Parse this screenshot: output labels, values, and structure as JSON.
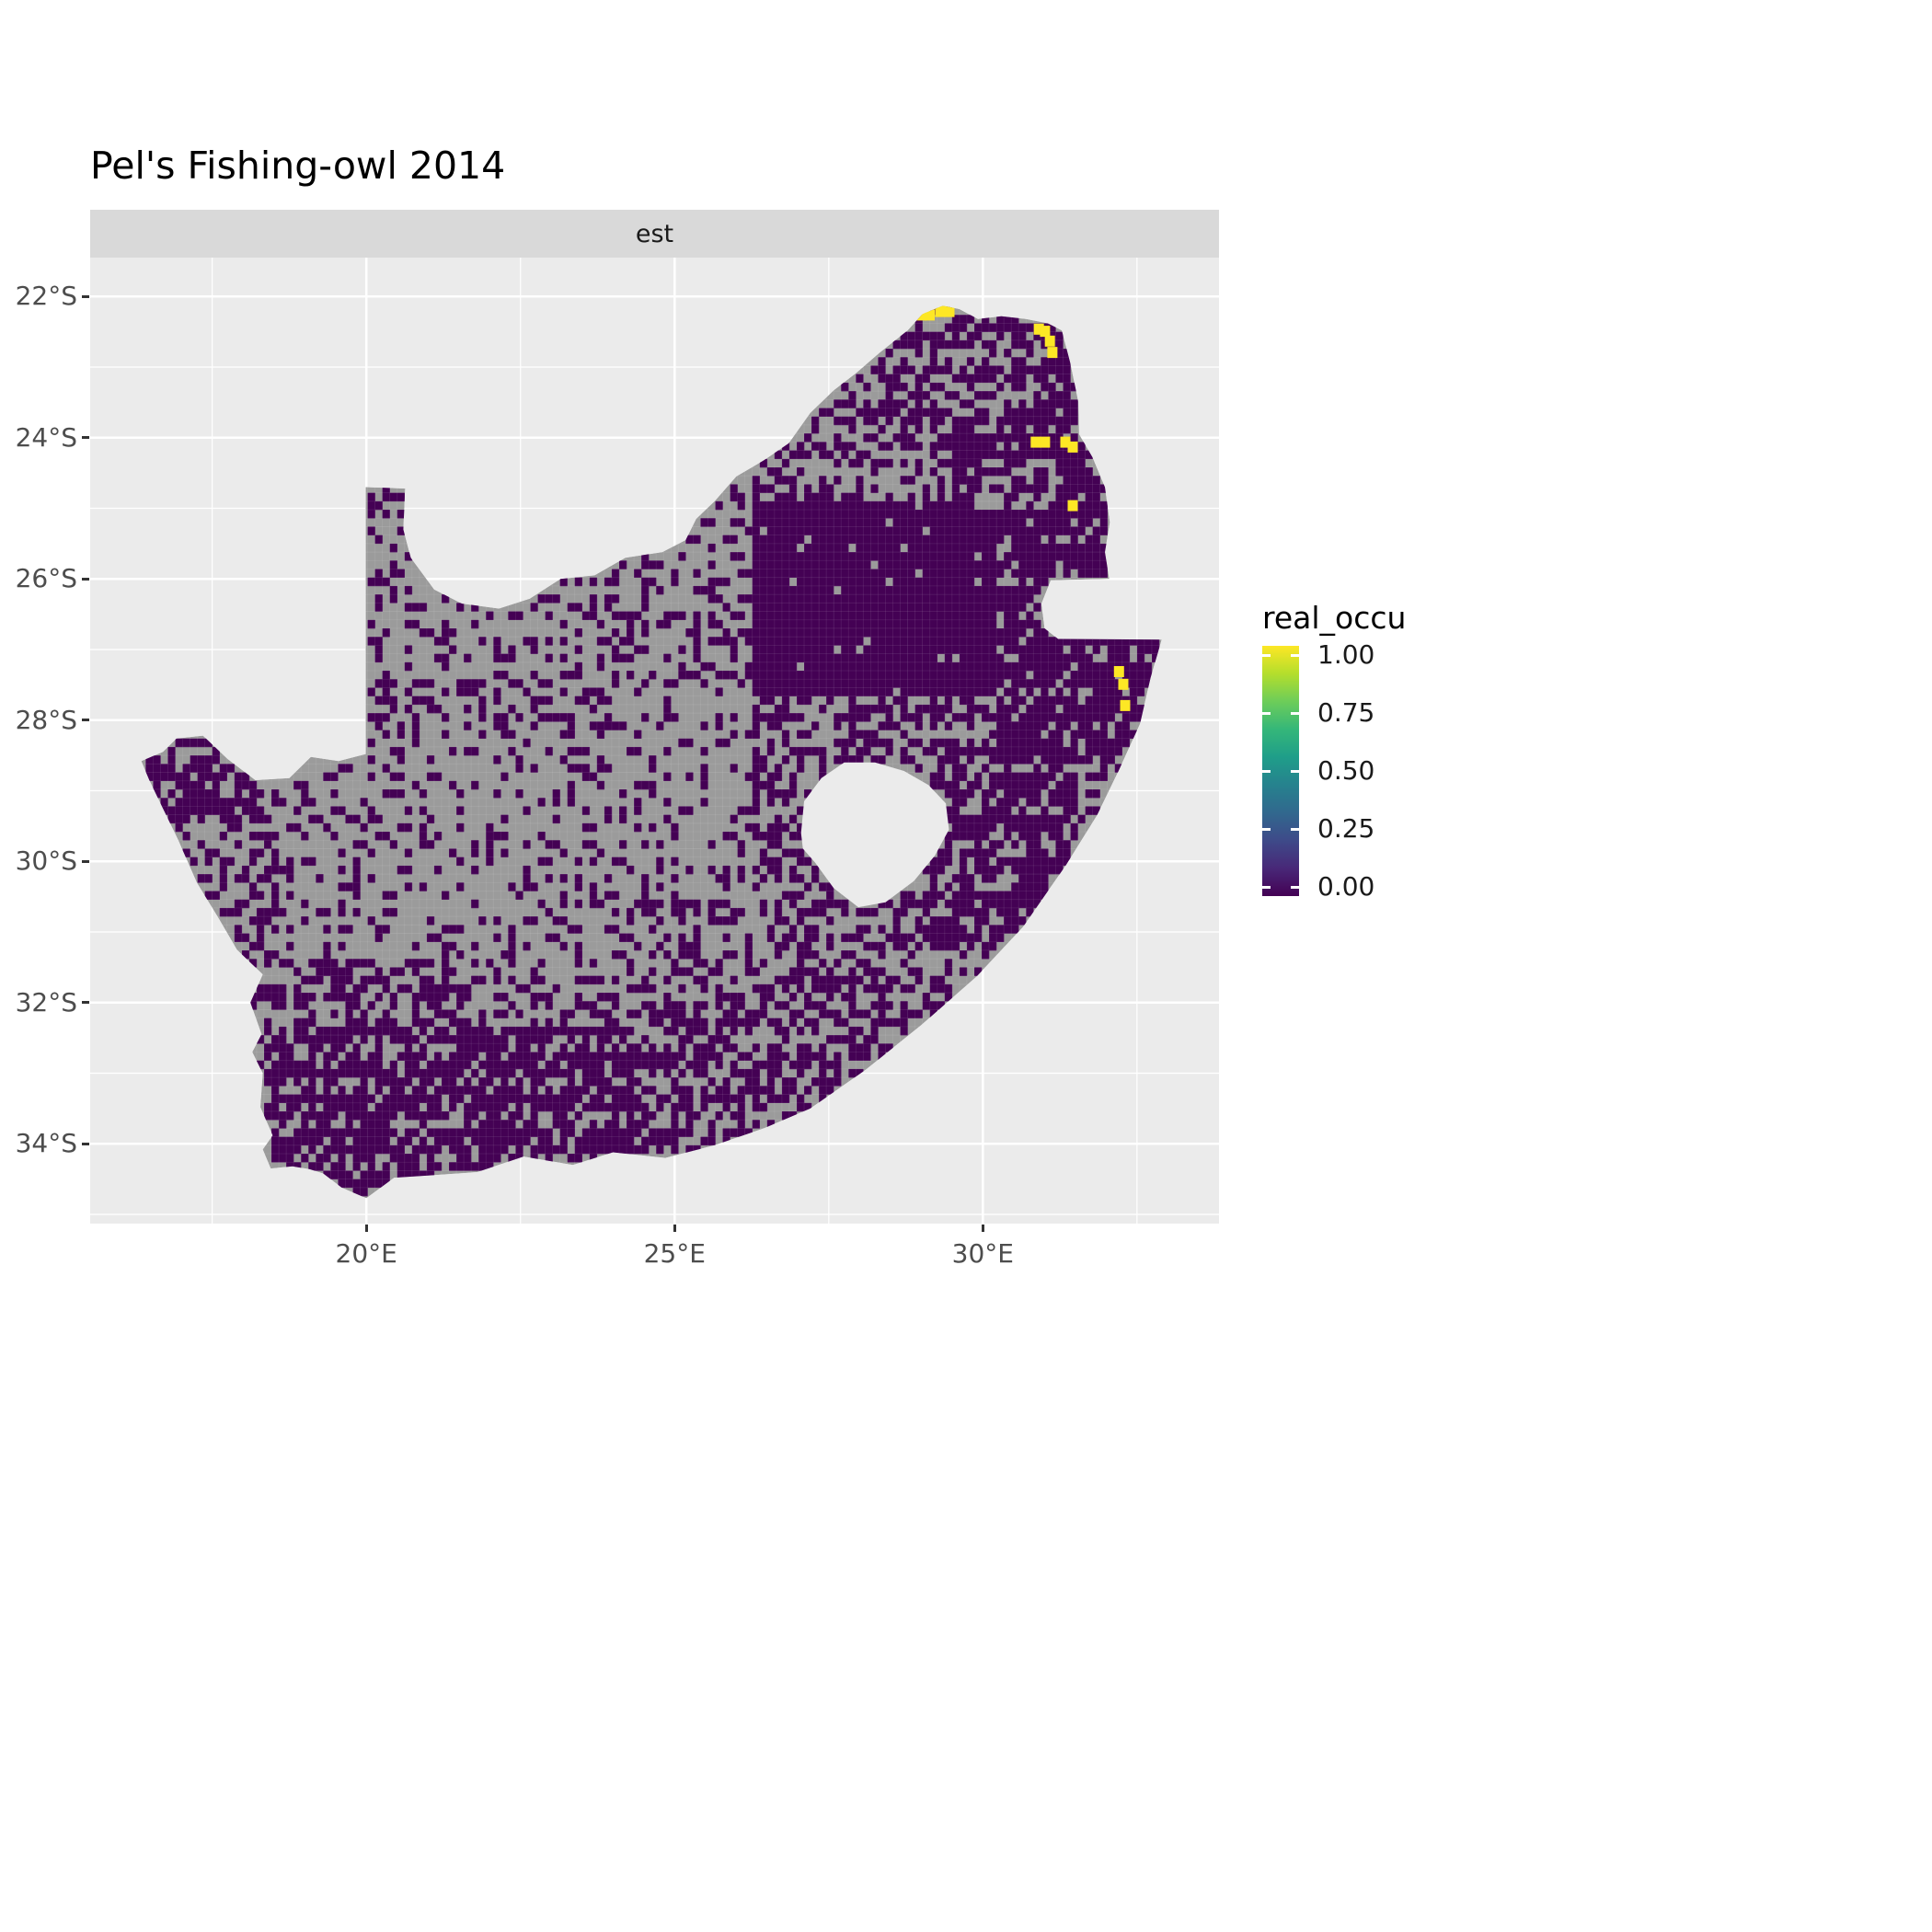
{
  "title": "Pel's Fishing-owl 2014",
  "facet_label": "est",
  "legend": {
    "title": "real_occu"
  },
  "chart_data": {
    "type": "heatmap",
    "subtype": "geographic-raster-map",
    "title": "Pel's Fishing-owl 2014",
    "facet_label": "est",
    "legend_variable": "real_occu",
    "region_depicted": "South Africa",
    "panel_bg": "#EBEBEB",
    "x_axis": {
      "range": [
        15.52,
        33.83
      ],
      "major_ticks": [
        {
          "value": 20,
          "label": "20°E"
        },
        {
          "value": 25,
          "label": "25°E"
        },
        {
          "value": 30,
          "label": "30°E"
        }
      ],
      "minor_ticks": [
        17.5,
        22.5,
        27.5,
        32.5
      ]
    },
    "y_axis": {
      "range": [
        21.45,
        35.13
      ],
      "major_ticks": [
        {
          "value": 22,
          "label": "22°S"
        },
        {
          "value": 24,
          "label": "24°S"
        },
        {
          "value": 26,
          "label": "26°S"
        },
        {
          "value": 28,
          "label": "28°S"
        },
        {
          "value": 30,
          "label": "30°S"
        },
        {
          "value": 32,
          "label": "32°S"
        },
        {
          "value": 34,
          "label": "34°S"
        }
      ],
      "minor_ticks": [
        23,
        25,
        27,
        29,
        31,
        33,
        35
      ]
    },
    "color_scale": {
      "name": "viridis",
      "min": 0.0,
      "max": 1.0,
      "ticks": [
        {
          "value": 1.0,
          "label": "1.00"
        },
        {
          "value": 0.75,
          "label": "0.75"
        },
        {
          "value": 0.5,
          "label": "0.50"
        },
        {
          "value": 0.25,
          "label": "0.25"
        },
        {
          "value": 0.0,
          "label": "0.00"
        }
      ],
      "gradient": [
        "#440154",
        "#482878",
        "#3E4A89",
        "#31688E",
        "#26828E",
        "#1F9E89",
        "#35B779",
        "#6DCD59",
        "#B4DE2C",
        "#FDE725"
      ]
    },
    "map": {
      "na_color": "#9B9B9B",
      "zero_color": "#440154",
      "one_color": "#FDE725",
      "cell_deg": 0.12,
      "lon_start": 16.3,
      "lon_end": 33.0,
      "lat_start": 22.02,
      "lat_end": 34.92,
      "base_density": 0.35,
      "outline": [
        [
          20.0,
          24.7
        ],
        [
          20.63,
          24.72
        ],
        [
          20.6,
          25.3
        ],
        [
          20.72,
          25.7
        ],
        [
          21.1,
          26.15
        ],
        [
          21.55,
          26.35
        ],
        [
          22.15,
          26.42
        ],
        [
          22.65,
          26.28
        ],
        [
          23.15,
          26.0
        ],
        [
          23.7,
          25.95
        ],
        [
          24.2,
          25.7
        ],
        [
          24.8,
          25.62
        ],
        [
          25.18,
          25.45
        ],
        [
          25.35,
          25.15
        ],
        [
          25.65,
          24.9
        ],
        [
          26.0,
          24.55
        ],
        [
          26.45,
          24.32
        ],
        [
          26.85,
          24.08
        ],
        [
          27.2,
          23.65
        ],
        [
          27.58,
          23.33
        ],
        [
          27.95,
          23.08
        ],
        [
          28.32,
          22.8
        ],
        [
          28.78,
          22.48
        ],
        [
          29.02,
          22.25
        ],
        [
          29.35,
          22.13
        ],
        [
          29.62,
          22.18
        ],
        [
          29.92,
          22.32
        ],
        [
          30.3,
          22.28
        ],
        [
          30.7,
          22.32
        ],
        [
          31.05,
          22.38
        ],
        [
          31.28,
          22.48
        ],
        [
          31.42,
          22.95
        ],
        [
          31.55,
          23.5
        ],
        [
          31.56,
          23.95
        ],
        [
          31.78,
          24.28
        ],
        [
          31.98,
          24.7
        ],
        [
          32.06,
          25.2
        ],
        [
          31.98,
          25.62
        ],
        [
          32.05,
          26.0
        ],
        [
          31.1,
          26.02
        ],
        [
          30.95,
          26.35
        ],
        [
          31.0,
          26.7
        ],
        [
          31.22,
          26.85
        ],
        [
          32.9,
          26.86
        ],
        [
          32.72,
          27.4
        ],
        [
          32.55,
          28.05
        ],
        [
          32.2,
          28.72
        ],
        [
          31.85,
          29.35
        ],
        [
          31.35,
          30.05
        ],
        [
          30.65,
          30.93
        ],
        [
          29.9,
          31.63
        ],
        [
          29.0,
          32.32
        ],
        [
          28.1,
          32.95
        ],
        [
          27.2,
          33.5
        ],
        [
          26.45,
          33.78
        ],
        [
          25.65,
          34.02
        ],
        [
          24.85,
          34.2
        ],
        [
          24.0,
          34.12
        ],
        [
          23.35,
          34.3
        ],
        [
          22.55,
          34.18
        ],
        [
          21.8,
          34.4
        ],
        [
          21.0,
          34.45
        ],
        [
          20.45,
          34.48
        ],
        [
          20.0,
          34.77
        ],
        [
          19.6,
          34.62
        ],
        [
          19.3,
          34.42
        ],
        [
          19.08,
          34.36
        ],
        [
          18.8,
          34.32
        ],
        [
          18.45,
          34.35
        ],
        [
          18.32,
          34.08
        ],
        [
          18.48,
          33.88
        ],
        [
          18.28,
          33.48
        ],
        [
          18.32,
          33.0
        ],
        [
          18.15,
          32.7
        ],
        [
          18.3,
          32.45
        ],
        [
          18.12,
          32.0
        ],
        [
          18.32,
          31.6
        ],
        [
          17.9,
          31.25
        ],
        [
          17.6,
          30.8
        ],
        [
          17.25,
          30.3
        ],
        [
          16.95,
          29.7
        ],
        [
          16.7,
          29.25
        ],
        [
          16.48,
          28.85
        ],
        [
          16.35,
          28.58
        ],
        [
          16.7,
          28.45
        ],
        [
          16.92,
          28.26
        ],
        [
          17.35,
          28.22
        ],
        [
          17.75,
          28.55
        ],
        [
          18.2,
          28.85
        ],
        [
          18.75,
          28.82
        ],
        [
          19.1,
          28.52
        ],
        [
          19.55,
          28.58
        ],
        [
          19.99,
          28.48
        ],
        [
          19.99,
          24.7
        ]
      ],
      "lesotho_hole": [
        [
          27.05,
          29.6
        ],
        [
          27.1,
          29.15
        ],
        [
          27.38,
          28.82
        ],
        [
          27.75,
          28.6
        ],
        [
          28.25,
          28.6
        ],
        [
          28.72,
          28.72
        ],
        [
          29.12,
          28.92
        ],
        [
          29.4,
          29.18
        ],
        [
          29.45,
          29.55
        ],
        [
          29.22,
          29.92
        ],
        [
          28.88,
          30.28
        ],
        [
          28.42,
          30.58
        ],
        [
          27.98,
          30.65
        ],
        [
          27.58,
          30.38
        ],
        [
          27.28,
          30.02
        ],
        [
          27.08,
          29.82
        ]
      ],
      "density_regions": [
        {
          "lon": [
            29.5,
            30.9
          ],
          "lat": [
            22.55,
            23.7
          ],
          "p": 0.5
        },
        {
          "lon": [
            30.0,
            31.2
          ],
          "lat": [
            24.25,
            25.0
          ],
          "p": 0.5
        },
        {
          "lon": [
            26.3,
            30.2
          ],
          "lat": [
            24.9,
            27.65
          ],
          "p": 0.97
        },
        {
          "lon": [
            29.5,
            32.3
          ],
          "lat": [
            22.0,
            25.0
          ],
          "p": 0.86
        },
        {
          "lon": [
            28.3,
            29.5
          ],
          "lat": [
            22.0,
            24.2
          ],
          "p": 0.55
        },
        {
          "lon": [
            26.4,
            28.3
          ],
          "lat": [
            23.2,
            24.9
          ],
          "p": 0.45
        },
        {
          "lon": [
            30.2,
            33.0
          ],
          "lat": [
            25.0,
            28.6
          ],
          "p": 0.82
        },
        {
          "lon": [
            29.2,
            31.6
          ],
          "lat": [
            28.6,
            31.3
          ],
          "p": 0.72
        },
        {
          "lon": [
            26.6,
            29.2
          ],
          "lat": [
            30.3,
            32.3
          ],
          "p": 0.5
        },
        {
          "lon": [
            24.4,
            29.6
          ],
          "lat": [
            32.0,
            34.1
          ],
          "p": 0.55
        },
        {
          "lon": [
            17.8,
            24.4
          ],
          "lat": [
            32.4,
            35.0
          ],
          "p": 0.75
        },
        {
          "lon": [
            18.4,
            21.6
          ],
          "lat": [
            31.4,
            32.4
          ],
          "p": 0.55
        },
        {
          "lon": [
            16.2,
            18.4
          ],
          "lat": [
            28.2,
            29.6
          ],
          "p": 0.68
        },
        {
          "lon": [
            16.2,
            18.6
          ],
          "lat": [
            29.6,
            32.4
          ],
          "p": 0.42
        },
        {
          "lon": [
            24.0,
            26.3
          ],
          "lat": [
            27.6,
            30.6
          ],
          "p": 0.18
        },
        {
          "lon": [
            18.6,
            24.0
          ],
          "lat": [
            28.2,
            31.4
          ],
          "p": 0.22
        },
        {
          "lon": [
            20.0,
            26.3
          ],
          "lat": [
            24.6,
            27.6
          ],
          "p": 0.3
        },
        {
          "lon": [
            26.3,
            30.2
          ],
          "lat": [
            27.65,
            30.3
          ],
          "p": 0.5
        }
      ],
      "one_cells": [
        [
          29.0,
          22.25
        ],
        [
          29.13,
          22.25
        ],
        [
          29.3,
          22.2
        ],
        [
          29.45,
          22.2
        ],
        [
          30.9,
          22.45
        ],
        [
          31.0,
          22.48
        ],
        [
          31.08,
          22.62
        ],
        [
          31.12,
          22.78
        ],
        [
          30.85,
          24.05
        ],
        [
          31.0,
          24.05
        ],
        [
          31.33,
          24.05
        ],
        [
          31.45,
          24.12
        ],
        [
          31.45,
          24.95
        ],
        [
          32.15,
          26.75
        ],
        [
          32.2,
          27.3
        ],
        [
          32.27,
          27.48
        ],
        [
          32.3,
          27.78
        ]
      ]
    }
  }
}
